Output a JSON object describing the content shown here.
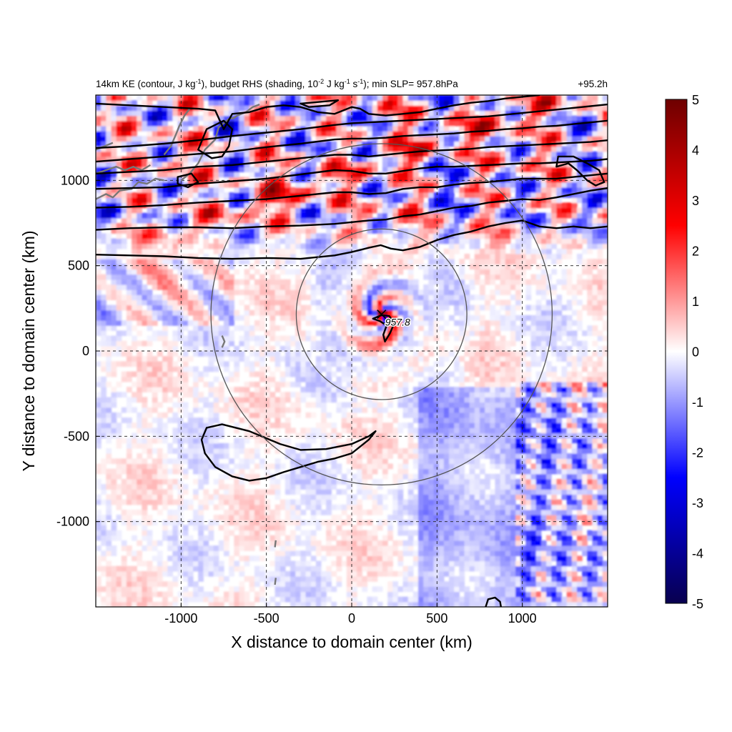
{
  "chart_data": {
    "type": "heatmap",
    "title": {
      "prefix": "14km KE (contour, J kg",
      "sup1": "-1",
      "mid1": "), budget RHS (shading, 10",
      "sup2": "-2",
      "mid2": " J kg",
      "sup3": "-1",
      "mid3": " s",
      "sup4": "-1",
      "suffix": "); min SLP= 957.8hPa"
    },
    "time_label": "+95.2h",
    "xlabel": "X distance to domain center (km)",
    "ylabel": "Y distance to domain center (km)",
    "xlim": [
      -1500,
      1500
    ],
    "ylim": [
      -1500,
      1500
    ],
    "x_ticks": [
      -1000,
      -500,
      0,
      500,
      1000
    ],
    "x_tick_labels": [
      "-1000",
      "-500",
      "0",
      "500",
      "1000"
    ],
    "y_ticks": [
      -1000,
      -500,
      0,
      500,
      1000
    ],
    "y_tick_labels": [
      "-1000",
      "-500",
      "0",
      "500",
      "1000"
    ],
    "grid": true,
    "colorbar": {
      "min": -5,
      "max": 5,
      "ticks": [
        5,
        4,
        3,
        2,
        1,
        0,
        -1,
        -2,
        -3,
        -4,
        -5
      ],
      "tick_labels": [
        "5",
        "4",
        "3",
        "2",
        "1",
        "0",
        "-1",
        "-2",
        "-3",
        "-4",
        "-5"
      ],
      "colors": [
        "#08004f",
        "#0000ff",
        "#ffffff",
        "#ff0000",
        "#6e0000"
      ]
    },
    "storm_center": {
      "x": 175,
      "y": 215,
      "label": "957.8"
    },
    "rings": [
      {
        "center": [
          175,
          215
        ],
        "radius": 500
      },
      {
        "center": [
          175,
          215
        ],
        "radius": 1000
      }
    ],
    "ke_contours": [
      [
        [
          -1500,
          565
        ],
        [
          -1300,
          560
        ],
        [
          -1100,
          555
        ],
        [
          -900,
          545
        ],
        [
          -700,
          540
        ],
        [
          -500,
          545
        ],
        [
          -300,
          540
        ],
        [
          -100,
          560
        ],
        [
          0,
          580
        ],
        [
          100,
          605
        ],
        [
          170,
          620
        ],
        [
          230,
          600
        ],
        [
          300,
          590
        ],
        [
          400,
          610
        ],
        [
          500,
          650
        ],
        [
          600,
          680
        ],
        [
          700,
          700
        ],
        [
          800,
          730
        ],
        [
          900,
          750
        ],
        [
          1000,
          765
        ],
        [
          1100,
          730
        ],
        [
          1200,
          720
        ],
        [
          1300,
          730
        ],
        [
          1400,
          720
        ],
        [
          1500,
          730
        ]
      ],
      [
        [
          -1500,
          710
        ],
        [
          -1300,
          720
        ],
        [
          -1100,
          725
        ],
        [
          -900,
          725
        ],
        [
          -700,
          720
        ],
        [
          -500,
          730
        ],
        [
          -300,
          735
        ],
        [
          -100,
          745
        ],
        [
          0,
          755
        ],
        [
          100,
          765
        ],
        [
          200,
          770
        ],
        [
          300,
          790
        ],
        [
          400,
          800
        ],
        [
          500,
          820
        ],
        [
          600,
          840
        ],
        [
          700,
          850
        ],
        [
          800,
          870
        ],
        [
          900,
          880
        ],
        [
          1000,
          890
        ],
        [
          1100,
          885
        ],
        [
          1200,
          900
        ],
        [
          1300,
          920
        ],
        [
          1400,
          940
        ],
        [
          1500,
          955
        ]
      ],
      [
        [
          -1500,
          840
        ],
        [
          -1300,
          845
        ],
        [
          -1100,
          855
        ],
        [
          -900,
          870
        ],
        [
          -700,
          880
        ],
        [
          -500,
          890
        ],
        [
          -300,
          910
        ],
        [
          -100,
          930
        ],
        [
          0,
          930
        ],
        [
          100,
          920
        ],
        [
          200,
          925
        ],
        [
          300,
          950
        ],
        [
          400,
          960
        ],
        [
          500,
          960
        ],
        [
          600,
          975
        ],
        [
          700,
          985
        ],
        [
          800,
          990
        ],
        [
          900,
          1000
        ],
        [
          1000,
          1010
        ],
        [
          1100,
          1010
        ],
        [
          1200,
          1010
        ],
        [
          1300,
          1020
        ],
        [
          1400,
          1030
        ],
        [
          1500,
          1040
        ]
      ],
      [
        [
          -1500,
          950
        ],
        [
          -1300,
          955
        ],
        [
          -1100,
          960
        ],
        [
          -900,
          980
        ],
        [
          -700,
          995
        ],
        [
          -500,
          1010
        ],
        [
          -300,
          1035
        ],
        [
          -100,
          1060
        ],
        [
          0,
          1055
        ],
        [
          100,
          1040
        ],
        [
          200,
          1040
        ],
        [
          300,
          1055
        ],
        [
          400,
          1070
        ],
        [
          500,
          1080
        ],
        [
          600,
          1080
        ],
        [
          700,
          1085
        ],
        [
          800,
          1090
        ],
        [
          900,
          1095
        ],
        [
          1000,
          1100
        ],
        [
          1100,
          1100
        ],
        [
          1200,
          1105
        ],
        [
          1300,
          1110
        ],
        [
          1400,
          1115
        ],
        [
          1500,
          1125
        ]
      ],
      [
        [
          -1500,
          1040
        ],
        [
          -1300,
          1050
        ],
        [
          -1100,
          1060
        ],
        [
          -900,
          1080
        ],
        [
          -700,
          1090
        ],
        [
          -500,
          1110
        ],
        [
          -300,
          1130
        ],
        [
          -100,
          1150
        ],
        [
          0,
          1150
        ],
        [
          100,
          1140
        ],
        [
          200,
          1150
        ],
        [
          300,
          1160
        ],
        [
          400,
          1170
        ],
        [
          500,
          1175
        ],
        [
          600,
          1180
        ],
        [
          700,
          1185
        ],
        [
          800,
          1195
        ],
        [
          900,
          1200
        ],
        [
          1000,
          1205
        ],
        [
          1100,
          1210
        ],
        [
          1200,
          1215
        ],
        [
          1300,
          1220
        ],
        [
          1400,
          1225
        ],
        [
          1500,
          1235
        ]
      ],
      [
        [
          -1500,
          1110
        ],
        [
          -1300,
          1125
        ],
        [
          -1100,
          1140
        ],
        [
          -900,
          1155
        ],
        [
          -700,
          1170
        ],
        [
          -500,
          1195
        ],
        [
          -300,
          1215
        ],
        [
          -100,
          1240
        ],
        [
          0,
          1245
        ],
        [
          100,
          1245
        ],
        [
          200,
          1250
        ],
        [
          300,
          1260
        ],
        [
          400,
          1265
        ],
        [
          500,
          1270
        ],
        [
          600,
          1275
        ],
        [
          700,
          1285
        ],
        [
          800,
          1290
        ],
        [
          900,
          1300
        ],
        [
          1000,
          1305
        ],
        [
          1100,
          1315
        ],
        [
          1200,
          1320
        ],
        [
          1300,
          1330
        ],
        [
          1400,
          1340
        ],
        [
          1500,
          1350
        ]
      ],
      [
        [
          -1500,
          1190
        ],
        [
          -1300,
          1200
        ],
        [
          -1100,
          1215
        ],
        [
          -900,
          1235
        ],
        [
          -700,
          1260
        ],
        [
          -500,
          1280
        ],
        [
          -300,
          1300
        ],
        [
          -100,
          1325
        ],
        [
          0,
          1335
        ],
        [
          100,
          1340
        ],
        [
          200,
          1345
        ],
        [
          300,
          1350
        ],
        [
          400,
          1355
        ],
        [
          500,
          1360
        ],
        [
          600,
          1365
        ],
        [
          700,
          1370
        ],
        [
          800,
          1375
        ],
        [
          900,
          1385
        ],
        [
          1000,
          1395
        ],
        [
          1100,
          1405
        ],
        [
          1200,
          1415
        ],
        [
          1300,
          1425
        ],
        [
          1400,
          1435
        ],
        [
          1500,
          1445
        ]
      ],
      [
        [
          -1500,
          1450
        ],
        [
          -1300,
          1440
        ],
        [
          -1100,
          1430
        ],
        [
          -900,
          1420
        ],
        [
          -800,
          1410
        ],
        [
          -750,
          1300
        ],
        [
          -700,
          1390
        ],
        [
          -600,
          1400
        ],
        [
          -500,
          1430
        ],
        [
          -400,
          1440
        ],
        [
          -300,
          1430
        ],
        [
          -200,
          1400
        ],
        [
          -100,
          1390
        ],
        [
          -50,
          1410
        ],
        [
          0,
          1430
        ],
        [
          50,
          1420
        ],
        [
          100,
          1390
        ],
        [
          200,
          1380
        ],
        [
          300,
          1390
        ],
        [
          400,
          1400
        ],
        [
          500,
          1420
        ],
        [
          600,
          1440
        ],
        [
          700,
          1455
        ],
        [
          800,
          1465
        ],
        [
          900,
          1480
        ],
        [
          1000,
          1490
        ],
        [
          1100,
          1500
        ]
      ],
      [
        [
          -900,
          1180
        ],
        [
          -820,
          1130
        ],
        [
          -760,
          1140
        ],
        [
          -720,
          1200
        ],
        [
          -700,
          1300
        ],
        [
          -750,
          1350
        ],
        [
          -850,
          1300
        ],
        [
          -900,
          1180
        ]
      ],
      [
        [
          -1020,
          980
        ],
        [
          -960,
          960
        ],
        [
          -900,
          990
        ],
        [
          -940,
          1040
        ],
        [
          -1020,
          1020
        ],
        [
          -1020,
          980
        ]
      ],
      [
        [
          -300,
          1450
        ],
        [
          -250,
          1430
        ],
        [
          -130,
          1440
        ],
        [
          -80,
          1470
        ],
        [
          -300,
          1450
        ]
      ],
      [
        [
          1200,
          1080
        ],
        [
          1270,
          1100
        ],
        [
          1320,
          1060
        ],
        [
          1380,
          1000
        ],
        [
          1430,
          970
        ],
        [
          1480,
          990
        ],
        [
          1450,
          1060
        ],
        [
          1380,
          1100
        ],
        [
          1300,
          1140
        ],
        [
          1210,
          1140
        ],
        [
          1200,
          1080
        ]
      ],
      [
        [
          125,
          190
        ],
        [
          175,
          210
        ],
        [
          220,
          205
        ],
        [
          250,
          165
        ],
        [
          225,
          105
        ],
        [
          195,
          55
        ],
        [
          185,
          95
        ],
        [
          205,
          150
        ],
        [
          165,
          175
        ],
        [
          125,
          190
        ]
      ],
      [
        [
          -850,
          -450
        ],
        [
          -760,
          -430
        ],
        [
          -600,
          -470
        ],
        [
          -420,
          -545
        ],
        [
          -300,
          -580
        ],
        [
          -150,
          -575
        ],
        [
          0,
          -545
        ],
        [
          100,
          -500
        ],
        [
          140,
          -470
        ],
        [
          100,
          -520
        ],
        [
          0,
          -600
        ],
        [
          -100,
          -630
        ],
        [
          -200,
          -650
        ],
        [
          -300,
          -680
        ],
        [
          -400,
          -710
        ],
        [
          -500,
          -745
        ],
        [
          -600,
          -760
        ],
        [
          -700,
          -735
        ],
        [
          -800,
          -680
        ],
        [
          -860,
          -600
        ],
        [
          -880,
          -520
        ],
        [
          -850,
          -450
        ]
      ],
      [
        [
          785,
          -1500
        ],
        [
          800,
          -1455
        ],
        [
          840,
          -1445
        ],
        [
          870,
          -1470
        ],
        [
          875,
          -1500
        ]
      ]
    ],
    "coastlines": [
      [
        [
          -1500,
          890
        ],
        [
          -1440,
          920
        ],
        [
          -1400,
          900
        ],
        [
          -1360,
          940
        ],
        [
          -1290,
          950
        ],
        [
          -1250,
          990
        ],
        [
          -1200,
          980
        ],
        [
          -1150,
          1010
        ],
        [
          -1100,
          1000
        ]
      ],
      [
        [
          -1500,
          1040
        ],
        [
          -1440,
          1060
        ],
        [
          -1380,
          1080
        ],
        [
          -1330,
          1060
        ],
        [
          -1280,
          1080
        ],
        [
          -1230,
          1060
        ],
        [
          -1180,
          1090
        ]
      ],
      [
        [
          -1000,
          1000
        ],
        [
          -950,
          1040
        ],
        [
          -900,
          1100
        ],
        [
          -860,
          1180
        ],
        [
          -800,
          1240
        ],
        [
          -780,
          1310
        ],
        [
          -720,
          1360
        ],
        [
          -680,
          1370
        ]
      ],
      [
        [
          -1100,
          1150
        ],
        [
          -1060,
          1200
        ],
        [
          -1030,
          1270
        ],
        [
          -1010,
          1320
        ],
        [
          -980,
          1380
        ],
        [
          -950,
          1420
        ]
      ],
      [
        [
          -700,
          1360
        ],
        [
          -670,
          1380
        ],
        [
          -620,
          1400
        ],
        [
          -580,
          1430
        ],
        [
          -540,
          1445
        ]
      ],
      [
        [
          -1500,
          1180
        ],
        [
          -1450,
          1200
        ],
        [
          -1400,
          1220
        ]
      ],
      [
        [
          -760,
          90
        ],
        [
          -745,
          55
        ],
        [
          -760,
          20
        ]
      ],
      [
        [
          -445,
          -1110
        ],
        [
          -450,
          -1150
        ]
      ],
      [
        [
          -445,
          -1330
        ],
        [
          -450,
          -1370
        ]
      ]
    ]
  }
}
